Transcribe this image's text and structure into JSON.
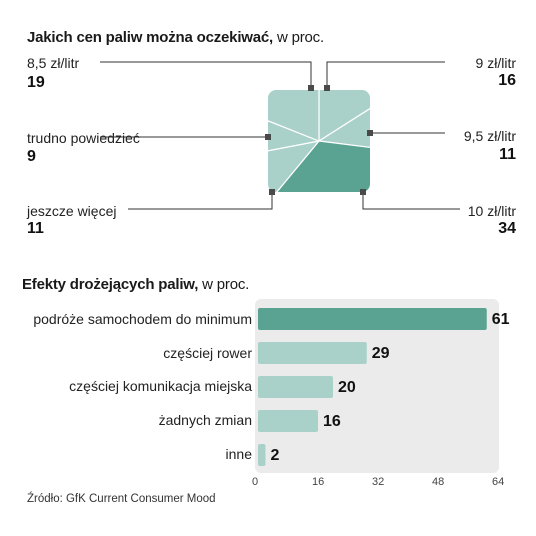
{
  "chart_data": [
    {
      "type": "pie",
      "title": "Jakich cen paliw można oczekiwać,",
      "title_unit": "w proc.",
      "slices": [
        {
          "label": "9 zł/litr",
          "value": 16,
          "value_text": "16",
          "color": "#a9d1c9",
          "side": "right"
        },
        {
          "label": "9,5 zł/litr",
          "value": 11,
          "value_text": "11",
          "color": "#a9d1c9",
          "side": "right"
        },
        {
          "label": "10 zł/litr",
          "value": 34,
          "value_text": "34",
          "color": "#5aa392",
          "side": "right"
        },
        {
          "label": "jeszcze więcej",
          "value": 11,
          "value_text": "11",
          "color": "#a9d1c9",
          "side": "left"
        },
        {
          "label": "trudno powiedzieć",
          "value": 9,
          "value_text": "9",
          "color": "#a9d1c9",
          "side": "left"
        },
        {
          "label": "8,5 zł/litr",
          "value": 19,
          "value_text": "19",
          "color": "#a9d1c9",
          "side": "left"
        }
      ]
    },
    {
      "type": "bar",
      "orientation": "horizontal",
      "title": "Efekty drożejących paliw,",
      "title_unit": "w proc.",
      "categories": [
        "podróże samochodem do minimum",
        "częściej rower",
        "częściej komunikacja miejska",
        "żadnych zmian",
        "inne"
      ],
      "values": [
        61,
        29,
        20,
        16,
        2
      ],
      "value_texts": [
        "61",
        "29",
        "20",
        "16",
        "2"
      ],
      "highlight_color": "#5aa392",
      "bar_color": "#a9d1c9",
      "xlim": [
        0,
        64
      ],
      "xticks": [
        "0",
        "16",
        "32",
        "48",
        "64"
      ]
    }
  ],
  "source": "Źródło: GfK Current Consumer Mood"
}
